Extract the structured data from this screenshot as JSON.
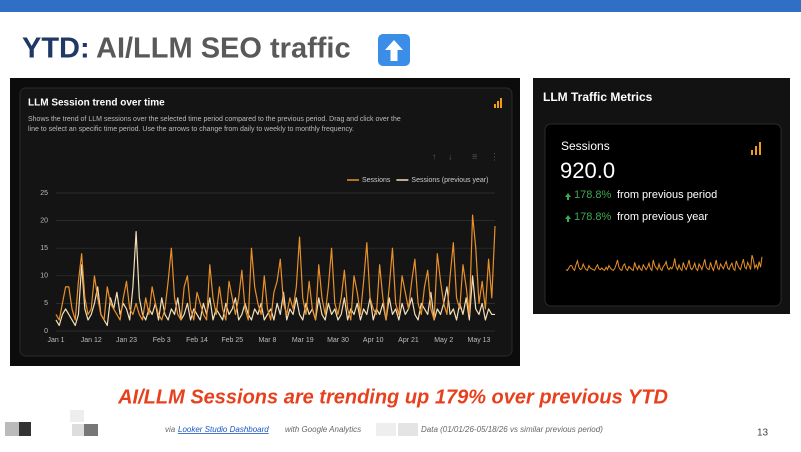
{
  "slide": {
    "title_prefix": "YTD:",
    "title": "AI/LLM SEO traffic",
    "headline": "AI/LLM Sessions are trending up 179% over previous YTD",
    "footnote": {
      "via": "via",
      "link": "Looker Studio Dashboard",
      "source": "with Google Analytics",
      "data": "Data (01/01/26-05/18/26 vs similar previous period)"
    },
    "page": "13"
  },
  "metrics": {
    "card_title": "LLM Traffic Metrics",
    "label": "Sessions",
    "value": "920.0",
    "changes": [
      {
        "pct": "178.8%",
        "text": "from previous period"
      },
      {
        "pct": "178.8%",
        "text": "from previous year"
      }
    ]
  },
  "chart_data": {
    "type": "line",
    "title": "LLM Session trend over time",
    "subtitle": [
      "Shows the trend of LLM sessions over the selected time period compared to the previous period. Drag and click over the",
      "line to select an specific time period. Use the arrows to change from daily to weekly to monthly frequency."
    ],
    "categories": [
      "Jan 1",
      null,
      null,
      null,
      null,
      null,
      null,
      null,
      null,
      null,
      null,
      "Jan 12",
      null,
      null,
      null,
      null,
      null,
      null,
      null,
      null,
      null,
      null,
      "Jan 23",
      null,
      null,
      null,
      null,
      null,
      null,
      null,
      null,
      null,
      null,
      "Feb 3",
      null,
      null,
      null,
      null,
      null,
      null,
      null,
      null,
      null,
      null,
      "Feb 14",
      null,
      null,
      null,
      null,
      null,
      null,
      null,
      null,
      null,
      null,
      "Feb 25",
      null,
      null,
      null,
      null,
      null,
      null,
      null,
      null,
      null,
      null,
      "Mar 8",
      null,
      null,
      null,
      null,
      null,
      null,
      null,
      null,
      null,
      null,
      "Mar 19",
      null,
      null,
      null,
      null,
      null,
      null,
      null,
      null,
      null,
      null,
      "Mar 30",
      null,
      null,
      null,
      null,
      null,
      null,
      null,
      null,
      null,
      null,
      "Apr 10",
      null,
      null,
      null,
      null,
      null,
      null,
      null,
      null,
      null,
      null,
      "Apr 21",
      null,
      null,
      null,
      null,
      null,
      null,
      null,
      null,
      null,
      null,
      "May 2",
      null,
      null,
      null,
      null,
      null,
      null,
      null,
      null,
      null,
      null,
      "May 13",
      null,
      null,
      null,
      null,
      null
    ],
    "series": [
      {
        "name": "Sessions",
        "color": "#e8902a",
        "values": [
          3,
          2,
          5,
          8,
          8,
          4,
          2,
          9,
          14,
          6,
          3,
          4,
          10,
          6,
          3,
          2,
          8,
          5,
          4,
          3,
          2,
          6,
          9,
          4,
          3,
          5,
          3,
          2,
          6,
          3,
          8,
          5,
          3,
          2,
          4,
          9,
          15,
          6,
          3,
          2,
          8,
          10,
          4,
          2,
          7,
          5,
          3,
          2,
          12,
          6,
          3,
          8,
          4,
          2,
          9,
          6,
          3,
          6,
          11,
          4,
          2,
          15,
          8,
          5,
          3,
          10,
          4,
          2,
          7,
          9,
          13,
          5,
          3,
          6,
          4,
          8,
          17,
          6,
          3,
          9,
          4,
          2,
          12,
          6,
          3,
          8,
          15,
          5,
          3,
          6,
          11,
          4,
          2,
          10,
          7,
          3,
          9,
          16,
          6,
          4,
          3,
          12,
          6,
          2,
          8,
          15,
          5,
          3,
          10,
          7,
          4,
          9,
          13,
          5,
          3,
          8,
          11,
          4,
          2,
          14,
          9,
          5,
          3,
          10,
          16,
          6,
          4,
          12,
          8,
          3,
          21,
          15,
          5,
          9,
          4,
          13,
          6,
          19
        ]
      },
      {
        "name": "Sessions (previous year)",
        "color": "#f3dfb8",
        "values": [
          2,
          1,
          3,
          4,
          3,
          2,
          1,
          3,
          12,
          4,
          2,
          3,
          5,
          8,
          3,
          2,
          1,
          6,
          4,
          7,
          3,
          5,
          4,
          2,
          8,
          18,
          6,
          3,
          2,
          4,
          3,
          5,
          2,
          6,
          3,
          2,
          4,
          3,
          6,
          2,
          3,
          5,
          2,
          4,
          3,
          2,
          5,
          3,
          6,
          2,
          4,
          3,
          2,
          5,
          3,
          4,
          6,
          2,
          3,
          5,
          3,
          2,
          4,
          3,
          5,
          2,
          3,
          4,
          2,
          5,
          3,
          7,
          2,
          4,
          3,
          6,
          3,
          2,
          5,
          3,
          4,
          2,
          6,
          3,
          2,
          5,
          3,
          4,
          2,
          3,
          6,
          2,
          4,
          3,
          5,
          2,
          4,
          3,
          6,
          2,
          4,
          3,
          5,
          2,
          6,
          3,
          4,
          2,
          5,
          3,
          4,
          6,
          3,
          2,
          5,
          4,
          3,
          7,
          2,
          4,
          3,
          5,
          8,
          3,
          4,
          2,
          5,
          3,
          6,
          2,
          10,
          4,
          3,
          5,
          2,
          4,
          3,
          3
        ]
      }
    ],
    "ylim": [
      0,
      25
    ],
    "yticks": [
      0,
      5,
      10,
      15,
      20,
      25
    ],
    "grid": true
  }
}
